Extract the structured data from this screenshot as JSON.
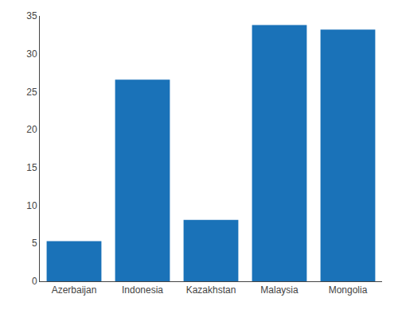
{
  "chart_data": {
    "type": "bar",
    "categories": [
      "Azerbaijan",
      "Indonesia",
      "Kazakhstan",
      "Malaysia",
      "Mongolia"
    ],
    "values": [
      5.3,
      26.6,
      8.1,
      33.8,
      33.2
    ],
    "color": "#1a72b8",
    "ylim": [
      0,
      35
    ],
    "yticks": [
      0,
      5,
      10,
      15,
      20,
      25,
      30,
      35
    ],
    "grid": false
  }
}
